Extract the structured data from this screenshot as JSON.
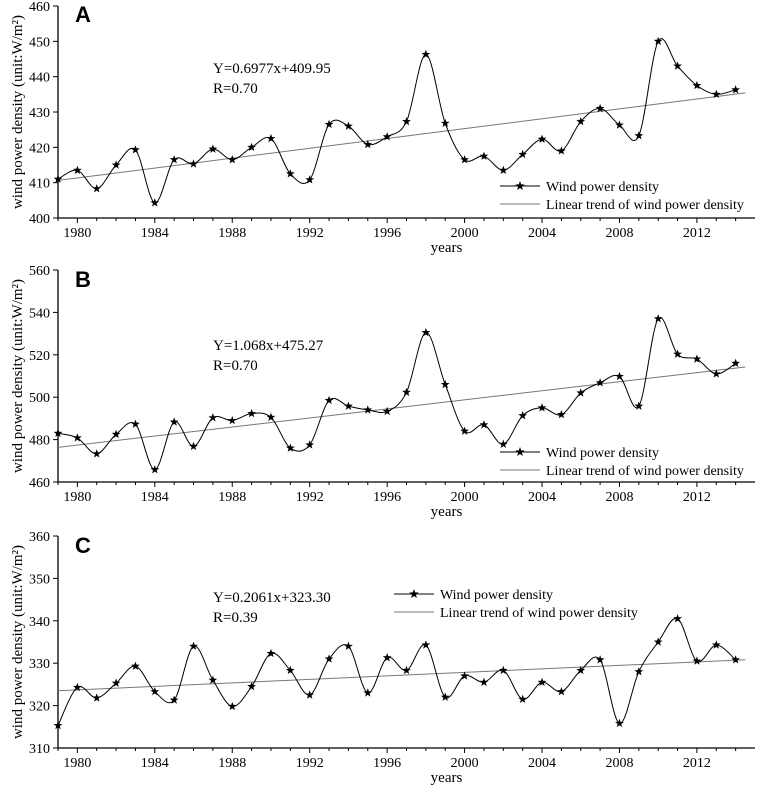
{
  "chart_data": [
    {
      "type": "line",
      "panel_label": "A",
      "xlabel": "years",
      "ylabel": "wind  power  density (unit:W/m²)",
      "xlim": [
        1979,
        2015
      ],
      "ylim": [
        400,
        460
      ],
      "yticks": [
        400,
        410,
        420,
        430,
        440,
        450,
        460
      ],
      "xticks": [
        1980,
        1984,
        1988,
        1992,
        1996,
        2000,
        2004,
        2008,
        2012
      ],
      "equation": "Y=0.6977x+409.95",
      "r_text": "R=0.70",
      "legend": {
        "placement": "bottom-right",
        "entries": [
          "Wind power density",
          "Linear trend of wind power density"
        ]
      },
      "trend": {
        "slope": 0.6977,
        "intercept": 409.95
      },
      "series": [
        {
          "name": "Wind power density",
          "x": [
            1979,
            1980,
            1981,
            1982,
            1983,
            1984,
            1985,
            1986,
            1987,
            1988,
            1989,
            1990,
            1991,
            1992,
            1993,
            1994,
            1995,
            1996,
            1997,
            1998,
            1999,
            2000,
            2001,
            2002,
            2003,
            2004,
            2005,
            2006,
            2007,
            2008,
            2009,
            2010,
            2011,
            2012,
            2013,
            2014
          ],
          "values": [
            411.0,
            413.5,
            408.3,
            415.0,
            419.3,
            404.3,
            416.5,
            415.3,
            419.5,
            416.5,
            420.0,
            422.5,
            412.5,
            410.8,
            426.5,
            426.0,
            420.8,
            423.0,
            427.3,
            446.3,
            426.8,
            416.5,
            417.5,
            413.5,
            418.0,
            422.3,
            419.0,
            427.3,
            431.0,
            426.3,
            423.3,
            450.0,
            443.0,
            437.5,
            435.0,
            436.3
          ]
        }
      ]
    },
    {
      "type": "line",
      "panel_label": "B",
      "xlabel": "years",
      "ylabel": "wind  power  density (unit:W/m²)",
      "xlim": [
        1979,
        2015
      ],
      "ylim": [
        460,
        560
      ],
      "yticks": [
        460,
        480,
        500,
        520,
        540,
        560
      ],
      "xticks": [
        1980,
        1984,
        1988,
        1992,
        1996,
        2000,
        2004,
        2008,
        2012
      ],
      "equation": "Y=1.068x+475.27",
      "r_text": "R=0.70",
      "legend": {
        "placement": "bottom-right",
        "entries": [
          "Wind power density",
          "Linear trend of wind power density"
        ]
      },
      "trend": {
        "slope": 1.068,
        "intercept": 475.27
      },
      "series": [
        {
          "name": "Wind power density",
          "x": [
            1979,
            1980,
            1981,
            1982,
            1983,
            1984,
            1985,
            1986,
            1987,
            1988,
            1989,
            1990,
            1991,
            1992,
            1993,
            1994,
            1995,
            1996,
            1997,
            1998,
            1999,
            2000,
            2001,
            2002,
            2003,
            2004,
            2005,
            2006,
            2007,
            2008,
            2009,
            2010,
            2011,
            2012,
            2013,
            2014
          ],
          "values": [
            483.0,
            480.8,
            473.3,
            482.5,
            487.3,
            465.8,
            488.3,
            476.8,
            490.3,
            489.0,
            492.3,
            490.5,
            476.0,
            477.5,
            498.5,
            495.8,
            494.0,
            493.3,
            502.3,
            530.5,
            506.0,
            484.0,
            487.0,
            477.8,
            491.3,
            495.0,
            491.8,
            502.0,
            506.8,
            509.8,
            495.8,
            537.0,
            520.3,
            518.0,
            511.0,
            516.0
          ]
        }
      ]
    },
    {
      "type": "line",
      "panel_label": "C",
      "xlabel": "years",
      "ylabel": "wind  power  density (unit:W/m²)",
      "xlim": [
        1979,
        2015
      ],
      "ylim": [
        310,
        360
      ],
      "yticks": [
        310,
        320,
        330,
        340,
        350,
        360
      ],
      "xticks": [
        1980,
        1984,
        1988,
        1992,
        1996,
        2000,
        2004,
        2008,
        2012
      ],
      "equation": "Y=0.2061x+323.30",
      "r_text": "R=0.39",
      "legend": {
        "placement": "top-right",
        "entries": [
          "Wind power density",
          "Linear trend of wind power density"
        ]
      },
      "trend": {
        "slope": 0.2061,
        "intercept": 323.3
      },
      "series": [
        {
          "name": "Wind power density",
          "x": [
            1979,
            1980,
            1981,
            1982,
            1983,
            1984,
            1985,
            1986,
            1987,
            1988,
            1989,
            1990,
            1991,
            1992,
            1993,
            1994,
            1995,
            1996,
            1997,
            1998,
            1999,
            2000,
            2001,
            2002,
            2003,
            2004,
            2005,
            2006,
            2007,
            2008,
            2009,
            2010,
            2011,
            2012,
            2013,
            2014
          ],
          "values": [
            315.3,
            324.3,
            321.8,
            325.3,
            329.3,
            323.3,
            321.3,
            334.0,
            326.0,
            319.8,
            324.5,
            332.3,
            328.3,
            322.5,
            331.0,
            334.0,
            323.0,
            331.3,
            328.3,
            334.3,
            322.0,
            327.0,
            325.5,
            328.3,
            321.5,
            325.5,
            323.3,
            328.3,
            330.8,
            315.8,
            328.0,
            335.0,
            340.5,
            330.5,
            334.3,
            330.8
          ]
        }
      ]
    }
  ]
}
